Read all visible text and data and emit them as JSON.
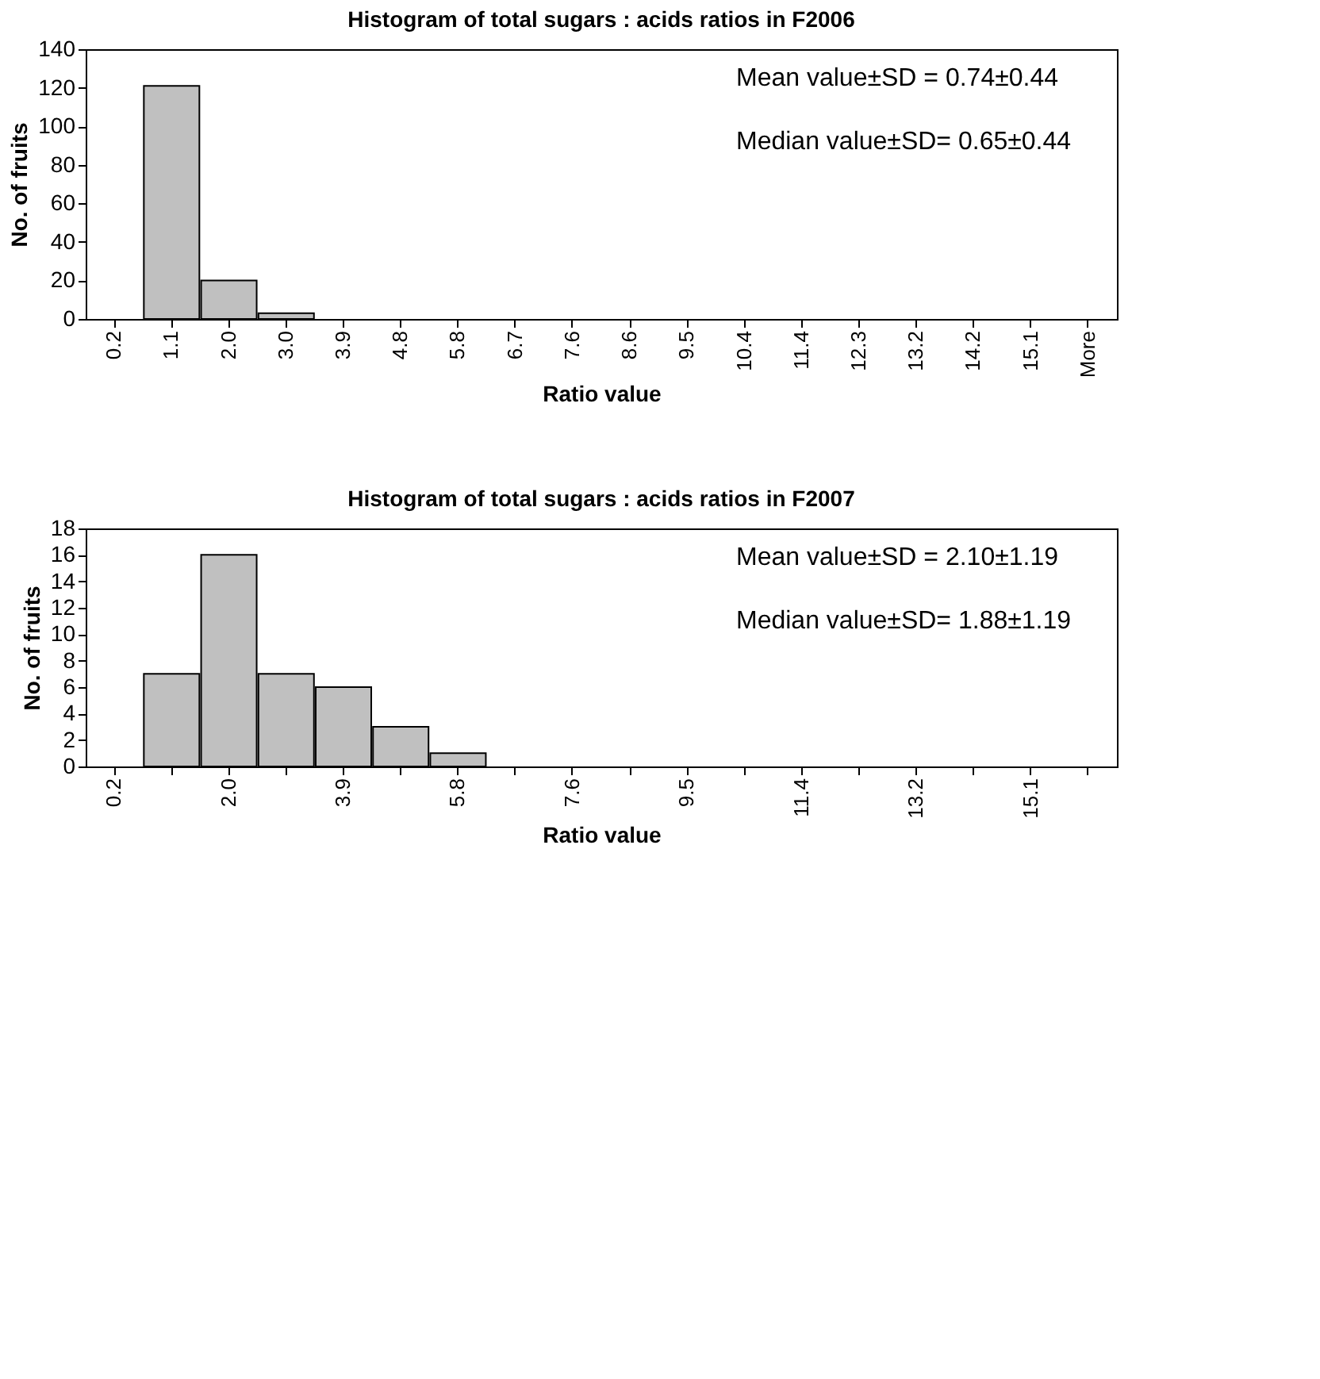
{
  "chart_data": [
    {
      "type": "bar",
      "title": "Histogram of total sugars : acids ratios in F2006",
      "xlabel": "Ratio value",
      "ylabel": "No. of fruits",
      "categories": [
        "0.2",
        "1.1",
        "2.0",
        "3.0",
        "3.9",
        "4.8",
        "5.8",
        "6.7",
        "7.6",
        "8.6",
        "9.5",
        "10.4",
        "11.4",
        "12.3",
        "13.2",
        "14.2",
        "15.1",
        "More"
      ],
      "values": [
        0,
        121,
        20,
        3,
        0,
        0,
        0,
        0,
        0,
        0,
        0,
        0,
        0,
        0,
        0,
        0,
        0,
        0
      ],
      "color": "#c0c0c0",
      "ylim": [
        0,
        140
      ],
      "yticks": [
        0,
        20,
        40,
        60,
        80,
        100,
        120,
        140
      ],
      "grid": false,
      "annotations": [
        "Mean value±SD = 0.74±0.44",
        "Median value±SD= 0.65±0.44"
      ]
    },
    {
      "type": "bar",
      "title": "Histogram of total sugars : acids ratios in F2007",
      "xlabel": "Ratio value",
      "ylabel": "No. of fruits",
      "categories": [
        "0.2",
        null,
        "2.0",
        null,
        "3.9",
        null,
        "5.8",
        null,
        "7.6",
        null,
        "9.5",
        null,
        "11.4",
        null,
        "13.2",
        null,
        "15.1",
        null
      ],
      "values": [
        0,
        7,
        16,
        7,
        6,
        3,
        1,
        0,
        0,
        0,
        0,
        0,
        0,
        0,
        0,
        0,
        0,
        0
      ],
      "color": "#c0c0c0",
      "ylim": [
        0,
        18
      ],
      "yticks": [
        0,
        2,
        4,
        6,
        8,
        10,
        12,
        14,
        16,
        18
      ],
      "grid": false,
      "annotations": [
        "Mean value±SD = 2.10±1.19",
        "Median value±SD= 1.88±1.19"
      ]
    }
  ]
}
